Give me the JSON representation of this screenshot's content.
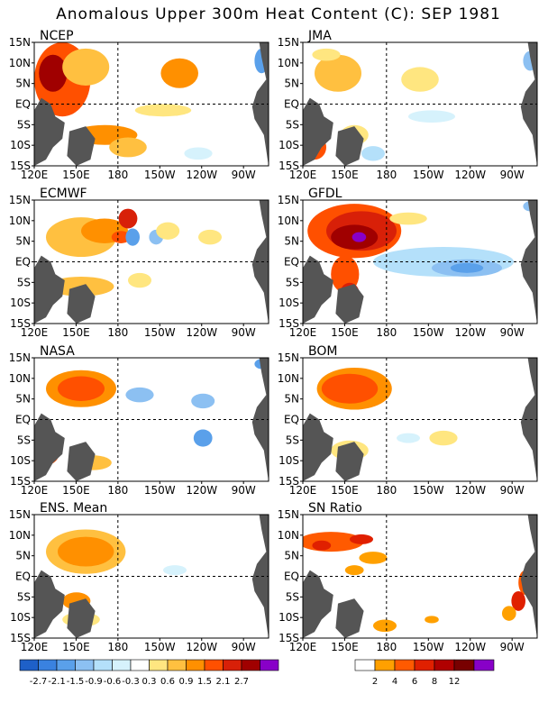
{
  "title": "Anomalous Upper 300m Heat Content (C): SEP 1981",
  "lat_labels": [
    "15N",
    "10N",
    "5N",
    "EQ",
    "5S",
    "10S",
    "15S"
  ],
  "lon_labels": [
    "120E",
    "150E",
    "180",
    "150W",
    "120W",
    "90W"
  ],
  "panels": [
    {
      "name": "NCEP"
    },
    {
      "name": "JMA"
    },
    {
      "name": "ECMWF"
    },
    {
      "name": "GFDL"
    },
    {
      "name": "NASA"
    },
    {
      "name": "BOM"
    },
    {
      "name": "ENS. Mean"
    },
    {
      "name": "SN Ratio"
    }
  ],
  "colorbar_main": {
    "colors": [
      "#1e60c8",
      "#3a82e0",
      "#5aa0ea",
      "#8cc0f2",
      "#b4e0fa",
      "#d6f2fc",
      "#ffffff",
      "#ffe680",
      "#ffc040",
      "#ff9000",
      "#ff5000",
      "#d82008",
      "#a00000",
      "#8800c8"
    ],
    "labels": [
      "-2.7",
      "-2.1",
      "-1.5",
      "-0.9",
      "-0.6",
      "-0.3",
      "0.3",
      "0.6",
      "0.9",
      "1.5",
      "2.1",
      "2.7"
    ]
  },
  "colorbar_sn": {
    "colors": [
      "#ffffff",
      "#ffa000",
      "#ff5a00",
      "#e02000",
      "#b00000",
      "#780000",
      "#8800c8"
    ],
    "labels": [
      "2",
      "4",
      "6",
      "8",
      "12"
    ]
  },
  "colors": {
    "land": "#555555",
    "frame": "#000000"
  }
}
